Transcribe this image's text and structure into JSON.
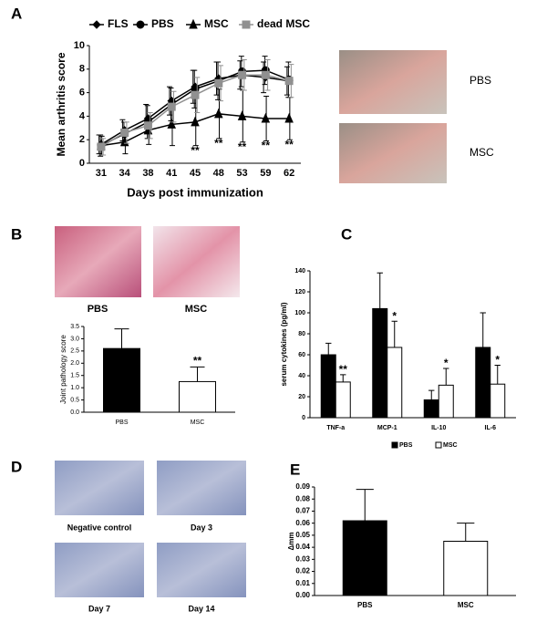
{
  "panel_labels": [
    "A",
    "B",
    "C",
    "D",
    "E"
  ],
  "paw_photos": [
    "PBS",
    "MSC"
  ],
  "histology_photos": [
    "PBS",
    "MSC"
  ],
  "immunostain_photos": [
    "Negative control",
    "Day 3",
    "Day 7",
    "Day 14"
  ],
  "chart_data": [
    {
      "type": "line",
      "x_label": "Days post immunization",
      "y_label": "Mean arthritis score",
      "categories": [
        31,
        34,
        38,
        41,
        45,
        48,
        53,
        59,
        62
      ],
      "ylim": [
        0,
        10
      ],
      "yticks": [
        0,
        2,
        4,
        6,
        8,
        10
      ],
      "legend": "top",
      "series": [
        {
          "name": "FLS",
          "color": "#000000",
          "marker": "diamond",
          "values": [
            1.6,
            2.8,
            3.8,
            5.3,
            6.5,
            7.2,
            7.5,
            7.3,
            7.0
          ],
          "errors": [
            0.8,
            0.9,
            1.2,
            1.2,
            1.4,
            1.4,
            1.2,
            1.3,
            1.2
          ]
        },
        {
          "name": "PBS",
          "color": "#000000",
          "marker": "circle",
          "values": [
            1.5,
            2.5,
            3.5,
            5.0,
            6.3,
            7.0,
            7.8,
            7.9,
            7.1
          ],
          "errors": [
            0.9,
            1.0,
            1.4,
            1.4,
            1.6,
            1.6,
            1.3,
            1.2,
            1.5
          ]
        },
        {
          "name": "MSC",
          "color": "#000000",
          "marker": "triangle",
          "values": [
            1.5,
            1.8,
            2.8,
            3.3,
            3.5,
            4.2,
            4.0,
            3.8,
            3.8
          ],
          "errors": [
            0.8,
            1.0,
            1.2,
            1.8,
            2.0,
            2.1,
            2.2,
            1.9,
            1.8
          ],
          "significance": [
            null,
            null,
            null,
            null,
            "**",
            "**",
            "**",
            "**",
            "**"
          ]
        },
        {
          "name": "dead MSC",
          "color": "#909090",
          "marker": "square",
          "values": [
            1.4,
            2.6,
            3.2,
            4.8,
            5.8,
            6.8,
            7.5,
            7.5,
            7.0
          ],
          "errors": [
            0.7,
            0.9,
            1.1,
            1.3,
            1.5,
            1.5,
            1.3,
            1.3,
            1.4
          ]
        }
      ]
    },
    {
      "type": "bar",
      "y_label": "Joint pathology score",
      "categories": [
        "PBS",
        "MSC"
      ],
      "values": [
        2.6,
        1.25
      ],
      "errors": [
        0.8,
        0.6
      ],
      "colors": [
        "#000000",
        "#ffffff"
      ],
      "significance": [
        null,
        "**"
      ],
      "ylim": [
        0,
        3.5
      ],
      "yticks": [
        {
          "value": 0,
          "label": "0.0"
        },
        0.5,
        {
          "value": 1,
          "label": "1.0"
        },
        1.5,
        {
          "value": 2,
          "label": "2.0"
        },
        2.5,
        {
          "value": 3,
          "label": "3.0"
        },
        3.5
      ]
    },
    {
      "type": "bar",
      "y_label": "serum cytokines (pg/ml)",
      "categories": [
        "TNF-a",
        "MCP-1",
        "IL-10",
        "IL-6"
      ],
      "ylim": [
        0,
        140
      ],
      "yticks": [
        0,
        20,
        40,
        60,
        80,
        100,
        120,
        140
      ],
      "legend": "bottom",
      "series": [
        {
          "name": "PBS",
          "color": "#000000",
          "values": [
            60,
            104,
            17,
            67
          ],
          "errors": [
            11,
            34,
            9,
            33
          ]
        },
        {
          "name": "MSC",
          "color": "#ffffff",
          "values": [
            34,
            67,
            31,
            32
          ],
          "errors": [
            7,
            25,
            16,
            18
          ],
          "significance": [
            "**",
            "*",
            "*",
            "*"
          ]
        }
      ]
    },
    {
      "type": "bar",
      "y_label": "Δmm",
      "categories": [
        "PBS",
        "MSC"
      ],
      "values": [
        0.062,
        0.045
      ],
      "errors": [
        0.026,
        0.015
      ],
      "colors": [
        "#000000",
        "#ffffff"
      ],
      "ylim": [
        0,
        0.09
      ],
      "yticks": [
        {
          "value": 0,
          "label": "0.00"
        },
        0.01,
        0.02,
        0.03,
        0.04,
        0.05,
        0.06,
        0.07,
        0.08,
        0.09
      ]
    }
  ]
}
